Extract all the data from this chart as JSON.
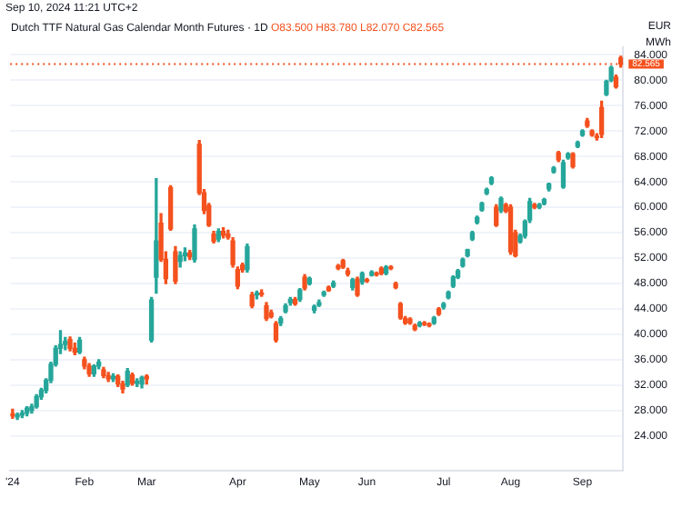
{
  "chart_data": {
    "type": "candlestick",
    "title": "Dutch TTF Natural Gas Calendar Month Futures · 1D",
    "subtitle": "O83.500 H83.780 L82.070 C82.565",
    "annotations": [
      "Sep 10, 2024 11:21 UTC+2",
      "EUR",
      "MWh"
    ],
    "categories": [
      "'24",
      null,
      null,
      null,
      null,
      null,
      null,
      null,
      null,
      null,
      null,
      null,
      null,
      null,
      null,
      "Feb",
      null,
      null,
      null,
      null,
      null,
      null,
      null,
      null,
      null,
      null,
      null,
      null,
      "Mar",
      null,
      null,
      null,
      null,
      null,
      null,
      null,
      null,
      null,
      null,
      null,
      null,
      null,
      null,
      null,
      null,
      null,
      null,
      "Apr",
      null,
      null,
      null,
      null,
      null,
      null,
      null,
      null,
      null,
      null,
      null,
      null,
      null,
      null,
      "May",
      null,
      null,
      null,
      null,
      null,
      null,
      null,
      null,
      null,
      null,
      null,
      "Jun",
      null,
      null,
      null,
      null,
      null,
      null,
      null,
      null,
      null,
      null,
      null,
      null,
      null,
      null,
      null,
      "Jul",
      null,
      null,
      null,
      null,
      null,
      null,
      null,
      null,
      null,
      null,
      null,
      null,
      null,
      "Aug",
      null,
      null,
      null,
      null,
      null,
      null,
      null,
      null,
      null,
      null,
      null,
      null,
      null,
      null,
      "Sep",
      null,
      null,
      null,
      null,
      null,
      null,
      null,
      null
    ],
    "ohlc": [
      [
        27.5,
        28.2,
        26.8,
        27.2
      ],
      [
        27,
        27.6,
        26.6,
        27.3
      ],
      [
        27.3,
        28,
        26.9,
        27.6
      ],
      [
        27.6,
        28.6,
        27.2,
        28.4
      ],
      [
        28,
        29,
        27.6,
        28.6
      ],
      [
        28.6,
        30.5,
        28.4,
        30.2
      ],
      [
        30.2,
        31.5,
        29.8,
        31.2
      ],
      [
        31.2,
        33,
        30.8,
        32.8
      ],
      [
        32.8,
        35.6,
        32.4,
        35.3
      ],
      [
        35.3,
        38.2,
        35,
        37.8
      ],
      [
        37.8,
        40.6,
        37,
        38.4
      ],
      [
        38.4,
        39.5,
        37.6,
        38.9
      ],
      [
        39.2,
        39.6,
        37.4,
        37.8
      ],
      [
        37.8,
        38.6,
        36.8,
        37.2
      ],
      [
        37.2,
        39.5,
        37,
        39.1
      ],
      [
        36,
        36.4,
        34.6,
        35
      ],
      [
        35,
        35.4,
        33.4,
        33.8
      ],
      [
        33.8,
        35.2,
        33.4,
        35
      ],
      [
        35,
        36,
        34.6,
        35.6
      ],
      [
        34.4,
        34.8,
        33.2,
        33.5
      ],
      [
        33.5,
        34,
        32.6,
        33
      ],
      [
        33,
        33.8,
        32.6,
        33.4
      ],
      [
        33.4,
        33.6,
        31.8,
        32.2
      ],
      [
        32.2,
        32.6,
        30.8,
        31.4
      ],
      [
        32,
        34.6,
        31.8,
        34.2
      ],
      [
        33.6,
        33.9,
        32,
        32.3
      ],
      [
        32.3,
        33,
        31.8,
        32.6
      ],
      [
        32.2,
        33.4,
        31.6,
        33.2
      ],
      [
        33.4,
        33.6,
        32.2,
        33
      ],
      [
        39.1,
        45.8,
        38.8,
        45.4
      ],
      [
        49,
        64.5,
        46.5,
        54.7
      ],
      [
        57.5,
        59,
        51.5,
        51.8
      ],
      [
        51.8,
        53,
        48,
        48.8
      ],
      [
        63.1,
        63.4,
        56.4,
        56.6
      ],
      [
        53,
        53.8,
        48,
        48.4
      ],
      [
        51.5,
        53,
        50.6,
        52.4
      ],
      [
        52.4,
        53.6,
        51.6,
        52.8
      ],
      [
        52.8,
        53.2,
        51.8,
        52.2
      ],
      [
        51.8,
        57.2,
        51.4,
        56.6
      ],
      [
        69.9,
        70.5,
        62,
        62.3
      ],
      [
        62.3,
        62.8,
        59,
        59.5
      ],
      [
        60.3,
        60.6,
        57,
        57.2
      ],
      [
        55.8,
        56.2,
        54.4,
        54.7
      ],
      [
        55,
        56.6,
        54.6,
        56.2
      ],
      [
        56.2,
        56.8,
        55.2,
        55.6
      ],
      [
        55.8,
        56.4,
        55,
        55.3
      ],
      [
        54.7,
        55.2,
        50.6,
        51
      ],
      [
        50.2,
        50.6,
        47.2,
        47.6
      ],
      [
        50.9,
        51.2,
        49.8,
        50.2
      ],
      [
        50.2,
        54.2,
        49.8,
        53.8
      ],
      [
        46.2,
        46.6,
        44.2,
        44.5
      ],
      [
        46.2,
        46.8,
        45.6,
        46.5
      ],
      [
        46.5,
        47,
        46,
        46.3
      ],
      [
        44.5,
        45,
        42.2,
        42.5
      ],
      [
        43.4,
        43.8,
        42.6,
        42.8
      ],
      [
        41.7,
        42,
        38.8,
        39.1
      ],
      [
        41.8,
        42.8,
        41.4,
        42.5
      ],
      [
        43.6,
        44.8,
        43.4,
        44.5
      ],
      [
        45,
        45.8,
        44.6,
        45.5
      ],
      [
        45.5,
        45.8,
        44.6,
        44.8
      ],
      [
        45.5,
        47.2,
        45.2,
        47
      ],
      [
        49,
        49.4,
        47,
        47.3
      ],
      [
        48,
        49,
        47.8,
        48.8
      ],
      [
        43.8,
        44.6,
        43.4,
        44.4
      ],
      [
        44.6,
        45.4,
        44.4,
        45
      ],
      [
        46.2,
        46.8,
        46,
        46.6
      ],
      [
        47.4,
        47.6,
        46.8,
        46.9
      ],
      [
        47.6,
        48.4,
        47.4,
        48.1
      ],
      [
        50.8,
        51,
        50.2,
        50.4
      ],
      [
        51.6,
        51.8,
        50.4,
        50.6
      ],
      [
        50,
        50.4,
        49.2,
        49.5
      ],
      [
        47.4,
        48.8,
        47,
        48.6
      ],
      [
        48.7,
        49,
        46,
        46.2
      ],
      [
        48.2,
        49.8,
        47.9,
        49.6
      ],
      [
        48.6,
        48.8,
        48.2,
        48.4
      ],
      [
        49.3,
        50,
        49.2,
        49.8
      ],
      [
        49.6,
        49.8,
        49.2,
        49.4
      ],
      [
        50.4,
        50.6,
        49.4,
        49.6
      ],
      [
        49.6,
        50.8,
        49.4,
        50.6
      ],
      [
        50.6,
        50.8,
        50.2,
        50.4
      ],
      [
        48,
        48.2,
        47.2,
        47.4
      ],
      [
        44.8,
        45,
        42.4,
        42.6
      ],
      [
        42.5,
        42.8,
        41.6,
        41.8
      ],
      [
        42.4,
        42.6,
        41.6,
        41.8
      ],
      [
        41.4,
        41.6,
        40.6,
        40.8
      ],
      [
        41.4,
        42,
        41.2,
        41.8
      ],
      [
        41.8,
        42,
        41.4,
        41.6
      ],
      [
        41.6,
        41.8,
        41.2,
        41.4
      ],
      [
        41.8,
        42.8,
        41.6,
        42.6
      ],
      [
        44,
        44.2,
        43,
        43.2
      ],
      [
        44.3,
        45,
        44,
        44.8
      ],
      [
        45.8,
        46.8,
        45.6,
        46.6
      ],
      [
        47.6,
        49.2,
        47.4,
        49
      ],
      [
        49,
        50.2,
        48.8,
        50
      ],
      [
        50.8,
        52,
        50.6,
        51.8
      ],
      [
        52.4,
        53.4,
        52.2,
        53.3
      ],
      [
        55,
        56.2,
        54.8,
        56
      ],
      [
        57.6,
        58.6,
        57.4,
        58.4
      ],
      [
        59.6,
        60.8,
        59.4,
        60.6
      ],
      [
        62.2,
        63,
        62,
        62.8
      ],
      [
        63.8,
        64.8,
        63.6,
        64.6
      ],
      [
        60,
        60.4,
        57,
        57.2
      ],
      [
        59.5,
        61.6,
        59.2,
        61.4
      ],
      [
        60.4,
        60.6,
        59.2,
        59.4
      ],
      [
        60,
        60.4,
        52.6,
        53
      ],
      [
        56,
        56.4,
        52.2,
        52.4
      ],
      [
        54.6,
        55.8,
        54.4,
        55.5
      ],
      [
        55.5,
        58,
        55.2,
        57.8
      ],
      [
        58,
        61.4,
        57.6,
        60.9
      ],
      [
        60.4,
        60.6,
        59.8,
        60
      ],
      [
        60,
        60.6,
        59.8,
        60.4
      ],
      [
        60.6,
        61.4,
        60.4,
        61.2
      ],
      [
        62.9,
        63.8,
        62.6,
        63.7
      ],
      [
        65.6,
        66.4,
        65.4,
        66.2
      ],
      [
        68.6,
        68.8,
        67.2,
        67.5
      ],
      [
        63.2,
        67.4,
        63,
        67
      ],
      [
        67.8,
        68.6,
        67.6,
        68.4
      ],
      [
        68.4,
        68.6,
        66.2,
        66.4
      ],
      [
        69.6,
        70.4,
        69.4,
        70.2
      ],
      [
        71.4,
        72.2,
        71.2,
        72
      ],
      [
        73.6,
        74,
        72.6,
        72.8
      ],
      [
        72,
        72.2,
        71.2,
        71.4
      ],
      [
        71.2,
        71.6,
        70.6,
        71
      ],
      [
        75.7,
        76.7,
        71,
        71.5
      ],
      [
        77.8,
        80,
        77.6,
        79.8
      ],
      [
        80,
        82.2,
        79.8,
        82
      ],
      [
        80.5,
        80.8,
        78.8,
        79
      ],
      [
        83.5,
        83.78,
        82.07,
        82.565
      ]
    ],
    "colors": [
      "#f4511e",
      "#26a69a",
      "#26a69a",
      "#26a69a",
      "#26a69a",
      "#26a69a",
      "#26a69a",
      "#26a69a",
      "#26a69a",
      "#26a69a",
      "#26a69a",
      "#26a69a",
      "#f4511e",
      "#f4511e",
      "#26a69a",
      "#f4511e",
      "#f4511e",
      "#26a69a",
      "#26a69a",
      "#f4511e",
      "#f4511e",
      "#26a69a",
      "#f4511e",
      "#f4511e",
      "#26a69a",
      "#f4511e",
      "#26a69a",
      "#26a69a",
      "#f4511e",
      "#26a69a",
      "#26a69a",
      "#f4511e",
      "#f4511e",
      "#f4511e",
      "#f4511e",
      "#26a69a",
      "#26a69a",
      "#f4511e",
      "#26a69a",
      "#f4511e",
      "#f4511e",
      "#f4511e",
      "#f4511e",
      "#26a69a",
      "#f4511e",
      "#f4511e",
      "#f4511e",
      "#f4511e",
      "#f4511e",
      "#26a69a",
      "#f4511e",
      "#26a69a",
      "#f4511e",
      "#f4511e",
      "#f4511e",
      "#f4511e",
      "#26a69a",
      "#26a69a",
      "#26a69a",
      "#f4511e",
      "#26a69a",
      "#f4511e",
      "#26a69a",
      "#26a69a",
      "#26a69a",
      "#26a69a",
      "#f4511e",
      "#26a69a",
      "#f4511e",
      "#f4511e",
      "#f4511e",
      "#26a69a",
      "#f4511e",
      "#26a69a",
      "#f4511e",
      "#26a69a",
      "#f4511e",
      "#f4511e",
      "#26a69a",
      "#f4511e",
      "#f4511e",
      "#f4511e",
      "#f4511e",
      "#f4511e",
      "#f4511e",
      "#26a69a",
      "#f4511e",
      "#f4511e",
      "#26a69a",
      "#f4511e",
      "#26a69a",
      "#26a69a",
      "#26a69a",
      "#26a69a",
      "#26a69a",
      "#26a69a",
      "#26a69a",
      "#26a69a",
      "#26a69a",
      "#26a69a",
      "#26a69a",
      "#f4511e",
      "#26a69a",
      "#f4511e",
      "#f4511e",
      "#f4511e",
      "#26a69a",
      "#26a69a",
      "#26a69a",
      "#f4511e",
      "#26a69a",
      "#26a69a",
      "#26a69a",
      "#26a69a",
      "#f4511e",
      "#26a69a",
      "#26a69a",
      "#f4511e",
      "#26a69a",
      "#26a69a",
      "#f4511e",
      "#f4511e",
      "#f4511e",
      "#f4511e",
      "#26a69a",
      "#26a69a",
      "#f4511e",
      "#f4511e"
    ],
    "ylim": [
      18.6,
      85.2
    ],
    "yticks": [
      {
        "value": 24,
        "label": "24.000"
      },
      {
        "value": 28,
        "label": "28.000"
      },
      {
        "value": 32,
        "label": "32.000"
      },
      {
        "value": 36,
        "label": "36.000"
      },
      {
        "value": 40,
        "label": "40.000"
      },
      {
        "value": 44,
        "label": "44.000"
      },
      {
        "value": 48,
        "label": "48.000"
      },
      {
        "value": 52,
        "label": "52.000"
      },
      {
        "value": 56,
        "label": "56.000"
      },
      {
        "value": 60,
        "label": "60.000"
      },
      {
        "value": 64,
        "label": "64.000"
      },
      {
        "value": 68,
        "label": "68.000"
      },
      {
        "value": 72,
        "label": "72.000"
      },
      {
        "value": 76,
        "label": "76.000"
      },
      {
        "value": 80,
        "label": "80.000"
      },
      {
        "value": 84,
        "label": "84.000"
      }
    ],
    "ref_lines": [
      {
        "axis": "y",
        "value": 82.565,
        "label": "82.565",
        "color": "#f4511e",
        "line_style": "dotted"
      }
    ],
    "grid": "y",
    "legend": false
  }
}
